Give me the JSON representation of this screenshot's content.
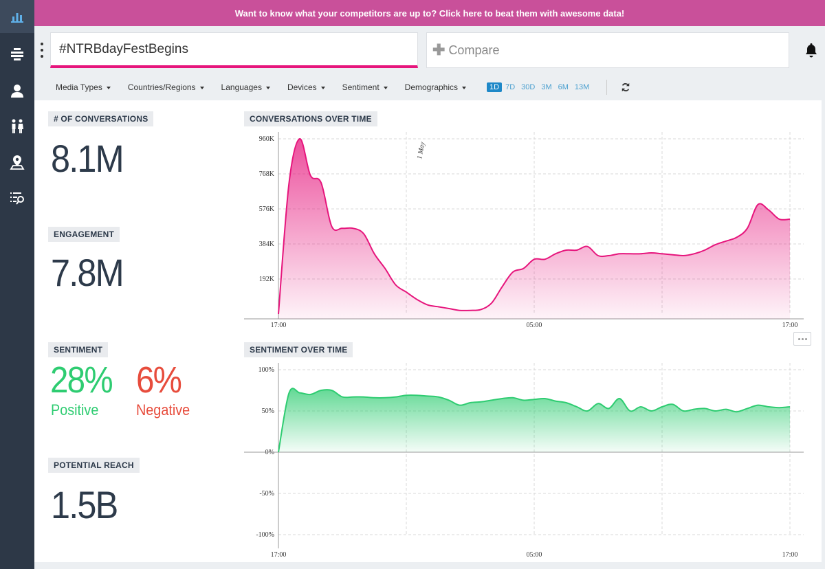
{
  "banner": {
    "text": "Want to know what your competitors are up to? Click here to beat them with awesome data!"
  },
  "sidebar": {
    "items": [
      {
        "icon": "bar-chart-icon",
        "active": true
      },
      {
        "icon": "hamburger-menu-icon"
      },
      {
        "icon": "user-icon"
      },
      {
        "icon": "people-icon"
      },
      {
        "icon": "location-pin-icon"
      },
      {
        "icon": "search-list-icon"
      }
    ]
  },
  "search": {
    "query": "#NTRBdayFestBegins",
    "compare_placeholder": "Compare",
    "compare_icon": "plus-icon"
  },
  "filters": {
    "items": [
      "Media Types",
      "Countries/Regions",
      "Languages",
      "Devices",
      "Sentiment",
      "Demographics"
    ],
    "ranges": [
      "1D",
      "7D",
      "30D",
      "3M",
      "6M",
      "13M"
    ],
    "active_range": "1D"
  },
  "metrics": {
    "conversations": {
      "label": "# OF CONVERSATIONS",
      "value": "8.1M"
    },
    "engagement": {
      "label": "ENGAGEMENT",
      "value": "7.8M"
    },
    "sentiment": {
      "label": "SENTIMENT",
      "positive": "28%",
      "positive_label": "Positive",
      "negative": "6%",
      "negative_label": "Negative"
    },
    "reach": {
      "label": "POTENTIAL REACH",
      "value": "1.5B"
    }
  },
  "colors": {
    "accent": "#e6157c",
    "banner": "#c9509a",
    "sidebar": "#2d3847",
    "positive": "#2ecc71",
    "negative": "#e74c3c",
    "text_dark": "#2d3a4a"
  },
  "chart_data": [
    {
      "type": "area",
      "title": "CONVERSATIONS OVER TIME",
      "x_ticks": [
        "17:00",
        "05:00",
        "17:00"
      ],
      "y_ticks": [
        "192K",
        "384K",
        "576K",
        "768K",
        "960K"
      ],
      "ylim": [
        0,
        960000
      ],
      "annotation": "1 May",
      "color": "#e6157c",
      "grid": true,
      "x": [
        0,
        0.5,
        1,
        1.5,
        2,
        2.5,
        3,
        3.5,
        4,
        4.5,
        5,
        5.5,
        6,
        6.5,
        7,
        7.5,
        8,
        8.5,
        9,
        9.5,
        10,
        10.5,
        11,
        11.5,
        12,
        12.5,
        13,
        13.5,
        14,
        14.5,
        15,
        15.5,
        16,
        16.5,
        17,
        17.5,
        18,
        18.5,
        19,
        19.5,
        20,
        20.5,
        21,
        21.5,
        22,
        22.5,
        23,
        23.5,
        24
      ],
      "values": [
        0,
        720000,
        960000,
        760000,
        720000,
        480000,
        470000,
        470000,
        440000,
        330000,
        250000,
        160000,
        120000,
        80000,
        50000,
        40000,
        30000,
        20000,
        20000,
        25000,
        60000,
        150000,
        230000,
        250000,
        300000,
        300000,
        330000,
        350000,
        350000,
        370000,
        320000,
        320000,
        330000,
        330000,
        330000,
        335000,
        330000,
        325000,
        320000,
        330000,
        350000,
        380000,
        400000,
        420000,
        470000,
        600000,
        570000,
        520000,
        520000
      ]
    },
    {
      "type": "area",
      "title": "SENTIMENT OVER TIME",
      "x_ticks": [
        "17:00",
        "05:00",
        "17:00"
      ],
      "y_ticks": [
        "100%",
        "50%",
        "0%",
        "-50%",
        "-100%"
      ],
      "ylim": [
        -100,
        100
      ],
      "color": "#2ecc71",
      "grid": true,
      "x": [
        0,
        0.5,
        1,
        1.5,
        2,
        2.5,
        3,
        3.5,
        4,
        4.5,
        5,
        5.5,
        6,
        6.5,
        7,
        7.5,
        8,
        8.5,
        9,
        9.5,
        10,
        10.5,
        11,
        11.5,
        12,
        12.5,
        13,
        13.5,
        14,
        14.5,
        15,
        15.5,
        16,
        16.5,
        17,
        17.5,
        18,
        18.5,
        19,
        19.5,
        20,
        20.5,
        21,
        21.5,
        22,
        22.5,
        23,
        23.5,
        24
      ],
      "values": [
        0,
        72,
        72,
        70,
        75,
        75,
        67,
        67,
        67,
        66,
        66,
        67,
        69,
        69,
        68,
        67,
        63,
        57,
        60,
        61,
        63,
        65,
        66,
        63,
        64,
        65,
        62,
        60,
        55,
        50,
        59,
        53,
        65,
        50,
        55,
        50,
        55,
        58,
        50,
        52,
        53,
        50,
        52,
        49,
        53,
        57,
        55,
        54,
        55
      ]
    }
  ]
}
